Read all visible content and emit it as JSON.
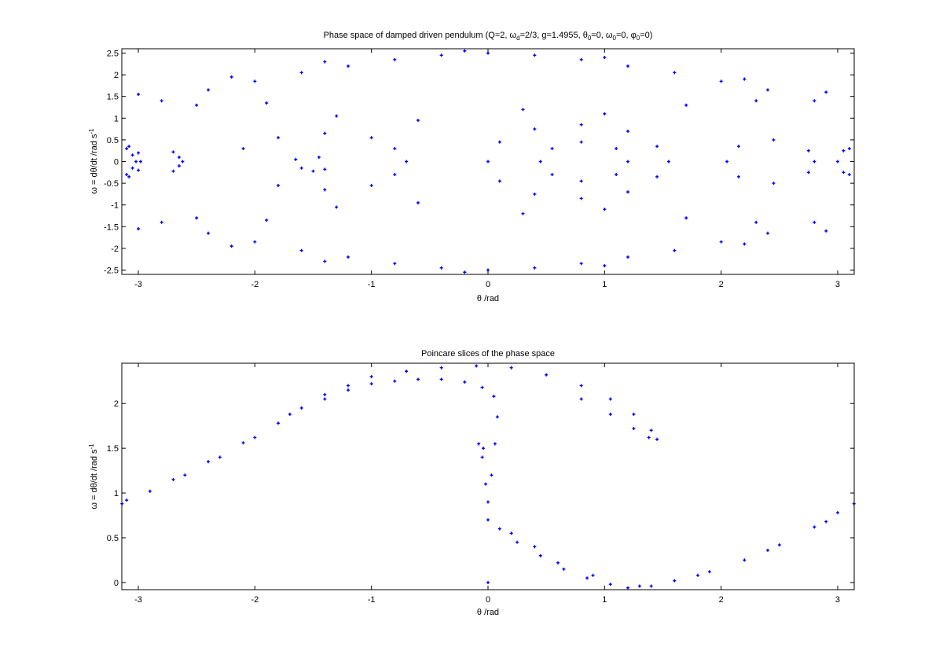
{
  "figure": {
    "background": "#ffffff",
    "marker_color": "#0000ff"
  },
  "chart_data": [
    {
      "type": "scatter",
      "title": {
        "base": "Phase space of damped driven pendulum (Q=2, ω",
        "sub1": "d",
        "mid1": "=2/3, g=1.4955, θ",
        "sub2": "0",
        "mid2": "=0, ω",
        "sub3": "0",
        "mid3": "=0, φ",
        "sub4": "0",
        "end": "=0)"
      },
      "xlabel": "θ /rad",
      "ylabel": {
        "base": "ω = dθ/dt /rad s",
        "sup": "-1"
      },
      "xlim": [
        -3.1416,
        3.1416
      ],
      "ylim": [
        -2.6,
        2.6
      ],
      "xticks": [
        -3,
        -2,
        -1,
        0,
        1,
        2,
        3
      ],
      "xtick_labels": [
        "-3",
        "-2",
        "-1",
        "0",
        "1",
        "2",
        "3"
      ],
      "yticks": [
        -2.5,
        -2,
        -1.5,
        -1,
        -0.5,
        0,
        0.5,
        1,
        1.5,
        2,
        2.5
      ],
      "ytick_labels": [
        "-2.5",
        "-2",
        "-1.5",
        "-1",
        "-0.5",
        "0",
        "0.5",
        "1",
        "1.5",
        "2",
        "2.5"
      ],
      "grid": false,
      "marker": "+",
      "series": [
        {
          "color": "#0000ff",
          "points": [
            [
              -3.1,
              -0.3
            ],
            [
              -3.05,
              -0.15
            ],
            [
              -3.02,
              0.0
            ],
            [
              -3.05,
              0.15
            ],
            [
              -3.1,
              0.3
            ],
            [
              -3.08,
              -0.35
            ],
            [
              -3.0,
              -0.2
            ],
            [
              -2.98,
              0.0
            ],
            [
              -3.0,
              0.2
            ],
            [
              -3.08,
              0.35
            ],
            [
              -2.7,
              -0.22
            ],
            [
              -2.65,
              -0.1
            ],
            [
              -2.62,
              0.0
            ],
            [
              -2.65,
              0.1
            ],
            [
              -2.7,
              0.22
            ],
            [
              -2.1,
              0.3
            ],
            [
              -1.8,
              0.55
            ],
            [
              -1.4,
              0.65
            ],
            [
              -1.0,
              0.55
            ],
            [
              -0.8,
              0.3
            ],
            [
              -0.7,
              0.0
            ],
            [
              -0.8,
              -0.3
            ],
            [
              -1.0,
              -0.55
            ],
            [
              -1.4,
              -0.65
            ],
            [
              -1.8,
              -0.55
            ],
            [
              -1.6,
              -0.15
            ],
            [
              -1.5,
              -0.22
            ],
            [
              -1.4,
              -0.18
            ],
            [
              -1.45,
              0.1
            ],
            [
              -1.65,
              0.05
            ],
            [
              0.0,
              0.0
            ],
            [
              0.1,
              0.45
            ],
            [
              0.4,
              0.75
            ],
            [
              0.8,
              0.85
            ],
            [
              1.2,
              0.7
            ],
            [
              1.45,
              0.35
            ],
            [
              1.55,
              0.0
            ],
            [
              1.45,
              -0.35
            ],
            [
              1.2,
              -0.7
            ],
            [
              0.8,
              -0.85
            ],
            [
              0.4,
              -0.75
            ],
            [
              0.1,
              -0.45
            ],
            [
              0.45,
              0.0
            ],
            [
              0.55,
              0.3
            ],
            [
              0.8,
              0.45
            ],
            [
              1.1,
              0.3
            ],
            [
              1.2,
              0.0
            ],
            [
              1.1,
              -0.3
            ],
            [
              0.8,
              -0.45
            ],
            [
              0.55,
              -0.3
            ],
            [
              2.05,
              0.0
            ],
            [
              2.15,
              0.35
            ],
            [
              2.45,
              0.5
            ],
            [
              2.75,
              0.25
            ],
            [
              2.8,
              0.0
            ],
            [
              2.75,
              -0.25
            ],
            [
              2.45,
              -0.5
            ],
            [
              2.15,
              -0.35
            ],
            [
              3.05,
              -0.25
            ],
            [
              3.0,
              0.0
            ],
            [
              3.05,
              0.25
            ],
            [
              3.1,
              0.3
            ],
            [
              3.1,
              -0.3
            ],
            [
              -2.8,
              1.4
            ],
            [
              -2.4,
              1.65
            ],
            [
              -2.0,
              1.85
            ],
            [
              -1.6,
              2.05
            ],
            [
              -1.2,
              2.2
            ],
            [
              -0.8,
              2.35
            ],
            [
              -0.4,
              2.45
            ],
            [
              0.0,
              2.5
            ],
            [
              0.4,
              2.45
            ],
            [
              0.8,
              2.35
            ],
            [
              1.2,
              2.2
            ],
            [
              1.6,
              2.05
            ],
            [
              2.0,
              1.85
            ],
            [
              2.4,
              1.65
            ],
            [
              2.8,
              1.4
            ],
            [
              -2.8,
              -1.4
            ],
            [
              -2.4,
              -1.65
            ],
            [
              -2.0,
              -1.85
            ],
            [
              -1.6,
              -2.05
            ],
            [
              -1.2,
              -2.2
            ],
            [
              -0.8,
              -2.35
            ],
            [
              -0.4,
              -2.45
            ],
            [
              0.0,
              -2.5
            ],
            [
              0.4,
              -2.45
            ],
            [
              0.8,
              -2.35
            ],
            [
              1.2,
              -2.2
            ],
            [
              1.6,
              -2.05
            ],
            [
              2.0,
              -1.85
            ],
            [
              2.4,
              -1.65
            ],
            [
              2.8,
              -1.4
            ],
            [
              -3.0,
              1.55
            ],
            [
              -2.5,
              1.3
            ],
            [
              -1.9,
              1.35
            ],
            [
              -1.3,
              1.05
            ],
            [
              -0.6,
              0.95
            ],
            [
              0.3,
              1.2
            ],
            [
              1.0,
              1.1
            ],
            [
              1.7,
              1.3
            ],
            [
              2.3,
              1.4
            ],
            [
              2.9,
              1.6
            ],
            [
              -3.0,
              -1.55
            ],
            [
              -2.5,
              -1.3
            ],
            [
              -1.9,
              -1.35
            ],
            [
              -1.3,
              -1.05
            ],
            [
              -0.6,
              -0.95
            ],
            [
              0.3,
              -1.2
            ],
            [
              1.0,
              -1.1
            ],
            [
              1.7,
              -1.3
            ],
            [
              2.3,
              -1.4
            ],
            [
              2.9,
              -1.6
            ],
            [
              -2.2,
              1.95
            ],
            [
              -1.4,
              2.3
            ],
            [
              -0.2,
              2.55
            ],
            [
              1.0,
              2.4
            ],
            [
              2.2,
              1.9
            ],
            [
              -2.2,
              -1.95
            ],
            [
              -1.4,
              -2.3
            ],
            [
              -0.2,
              -2.55
            ],
            [
              1.0,
              -2.4
            ],
            [
              2.2,
              -1.9
            ]
          ]
        }
      ]
    },
    {
      "type": "scatter",
      "title": "Poincare slices of the phase space",
      "xlabel": "θ /rad",
      "ylabel": {
        "base": "ω = dθ/dt /rad s",
        "sup": "-1"
      },
      "xlim": [
        -3.1416,
        3.1416
      ],
      "ylim": [
        -0.08,
        2.45
      ],
      "xticks": [
        -3,
        -2,
        -1,
        0,
        1,
        2,
        3
      ],
      "xtick_labels": [
        "-3",
        "-2",
        "-1",
        "0",
        "1",
        "2",
        "3"
      ],
      "yticks": [
        0,
        0.5,
        1,
        1.5,
        2
      ],
      "ytick_labels": [
        "0",
        "0.5",
        "1",
        "1.5",
        "2"
      ],
      "grid": false,
      "marker": "+",
      "series": [
        {
          "color": "#0000ff",
          "points": [
            [
              -3.14,
              0.88
            ],
            [
              -2.9,
              1.02
            ],
            [
              -2.6,
              1.2
            ],
            [
              -2.3,
              1.4
            ],
            [
              -2.0,
              1.62
            ],
            [
              -1.8,
              1.78
            ],
            [
              -1.6,
              1.95
            ],
            [
              -1.4,
              2.05
            ],
            [
              -1.2,
              2.15
            ],
            [
              -1.0,
              2.22
            ],
            [
              -0.8,
              2.25
            ],
            [
              -0.6,
              2.27
            ],
            [
              -0.4,
              2.27
            ],
            [
              -0.2,
              2.24
            ],
            [
              -0.05,
              2.18
            ],
            [
              0.05,
              2.08
            ],
            [
              0.08,
              1.85
            ],
            [
              0.06,
              1.55
            ],
            [
              0.03,
              1.2
            ],
            [
              0.0,
              0.9
            ],
            [
              -0.05,
              1.4
            ],
            [
              -0.08,
              1.55
            ],
            [
              -0.04,
              1.5
            ],
            [
              -0.02,
              1.1
            ],
            [
              0.0,
              0.7
            ],
            [
              -1.0,
              2.3
            ],
            [
              -0.7,
              2.36
            ],
            [
              -0.4,
              2.4
            ],
            [
              -0.1,
              2.42
            ],
            [
              0.2,
              2.4
            ],
            [
              0.5,
              2.32
            ],
            [
              0.8,
              2.2
            ],
            [
              1.05,
              2.05
            ],
            [
              1.25,
              1.88
            ],
            [
              1.4,
              1.7
            ],
            [
              1.45,
              1.6
            ],
            [
              1.38,
              1.62
            ],
            [
              1.25,
              1.72
            ],
            [
              1.05,
              1.88
            ],
            [
              0.8,
              2.05
            ],
            [
              -3.1,
              0.92
            ],
            [
              -2.7,
              1.15
            ],
            [
              -2.4,
              1.35
            ],
            [
              -2.1,
              1.56
            ],
            [
              -1.7,
              1.88
            ],
            [
              -1.4,
              2.1
            ],
            [
              -1.2,
              2.2
            ],
            [
              0.1,
              0.6
            ],
            [
              0.25,
              0.45
            ],
            [
              0.45,
              0.3
            ],
            [
              0.65,
              0.15
            ],
            [
              0.85,
              0.05
            ],
            [
              1.05,
              -0.02
            ],
            [
              1.2,
              -0.06
            ],
            [
              1.4,
              -0.04
            ],
            [
              1.6,
              0.02
            ],
            [
              1.9,
              0.12
            ],
            [
              2.2,
              0.25
            ],
            [
              2.5,
              0.42
            ],
            [
              2.8,
              0.62
            ],
            [
              3.0,
              0.78
            ],
            [
              3.14,
              0.88
            ],
            [
              0.2,
              0.55
            ],
            [
              0.4,
              0.4
            ],
            [
              0.6,
              0.22
            ],
            [
              0.9,
              0.08
            ],
            [
              1.3,
              -0.04
            ],
            [
              1.8,
              0.08
            ],
            [
              2.4,
              0.36
            ],
            [
              2.9,
              0.68
            ],
            [
              0.0,
              0.0
            ]
          ]
        }
      ]
    }
  ]
}
